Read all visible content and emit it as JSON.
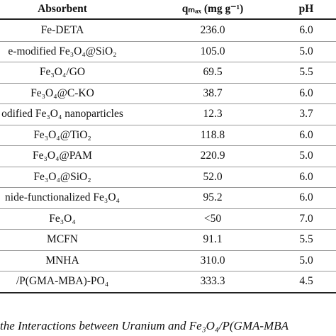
{
  "table": {
    "header": [
      "Absorbent",
      "qₘₐₓ (mg g⁻¹)",
      "pH"
    ],
    "rows": [
      [
        "Fe-DETA",
        "236.0",
        "6.0"
      ],
      [
        "e-modified Fe₃O₄@SiO₂",
        "105.0",
        "5.0"
      ],
      [
        "Fe₃O₄/GO",
        "69.5",
        "5.5"
      ],
      [
        "Fe₃O₄@C-KO",
        "38.7",
        "6.0"
      ],
      [
        "odified Fe₃O₄ nanoparticles",
        "12.3",
        "3.7"
      ],
      [
        "Fe₃O₄@TiO₂",
        "118.8",
        "6.0"
      ],
      [
        "Fe₃O₄@PAM",
        "220.9",
        "5.0"
      ],
      [
        "Fe₃O₄@SiO₂",
        "52.0",
        "6.0"
      ],
      [
        "nide-functionalized Fe₃O₄",
        "95.2",
        "6.0"
      ],
      [
        "Fe₃O₄",
        "<50",
        "7.0"
      ],
      [
        "MCFN",
        "91.1",
        "5.5"
      ],
      [
        "MNHA",
        "310.0",
        "5.0"
      ],
      [
        "/P(GMA-MBA)-PO₄",
        "333.3",
        "4.5"
      ]
    ]
  },
  "caption": "the Interactions between Uranium and Fe₃O₄/P(GMA-MBA"
}
